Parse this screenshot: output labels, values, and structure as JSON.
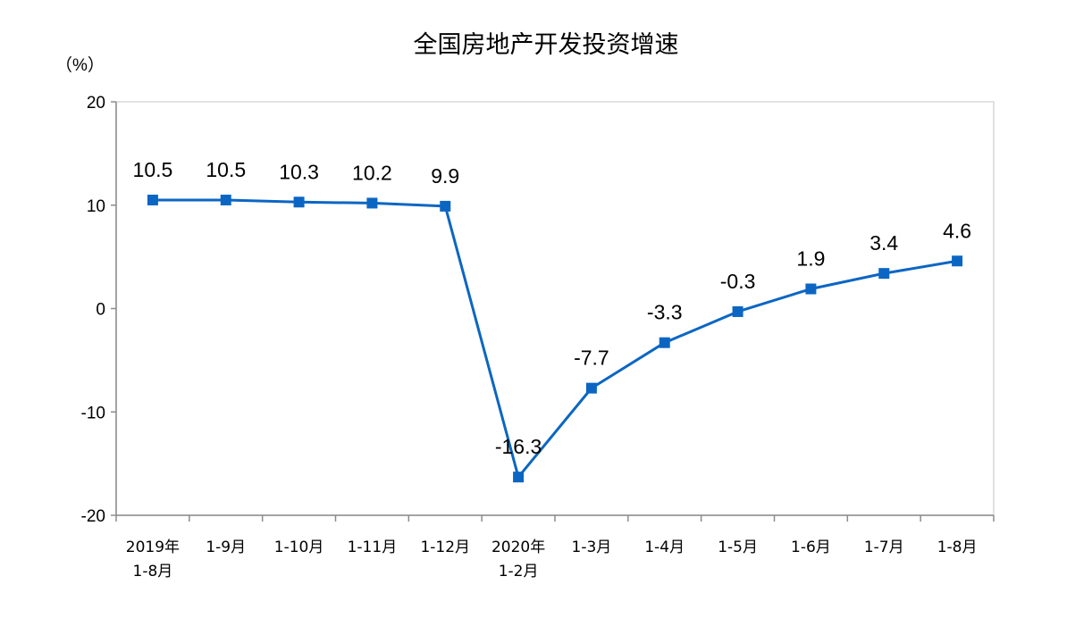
{
  "chart_data": {
    "type": "line",
    "title": "全国房地产开发投资增速",
    "ylabel": "（%）",
    "xlabel": "",
    "ylim": [
      -20,
      20
    ],
    "yticks": [
      20,
      10,
      0,
      -10,
      -20
    ],
    "categories": [
      [
        "2019年",
        "1-8月"
      ],
      [
        "1-9月"
      ],
      [
        "1-10月"
      ],
      [
        "1-11月"
      ],
      [
        "1-12月"
      ],
      [
        "2020年",
        "1-2月"
      ],
      [
        "1-3月"
      ],
      [
        "1-4月"
      ],
      [
        "1-5月"
      ],
      [
        "1-6月"
      ],
      [
        "1-7月"
      ],
      [
        "1-8月"
      ]
    ],
    "series": [
      {
        "values": [
          10.5,
          10.5,
          10.3,
          10.2,
          9.9,
          -16.3,
          -7.7,
          -3.3,
          -0.3,
          1.9,
          3.4,
          4.6
        ],
        "labels": [
          "10.5",
          "10.5",
          "10.3",
          "10.2",
          "9.9",
          "-16.3",
          "-7.7",
          "-3.3",
          "-0.3",
          "1.9",
          "3.4",
          "4.6"
        ],
        "color": "#0b66c3"
      }
    ],
    "grid": false,
    "legend": "none"
  }
}
